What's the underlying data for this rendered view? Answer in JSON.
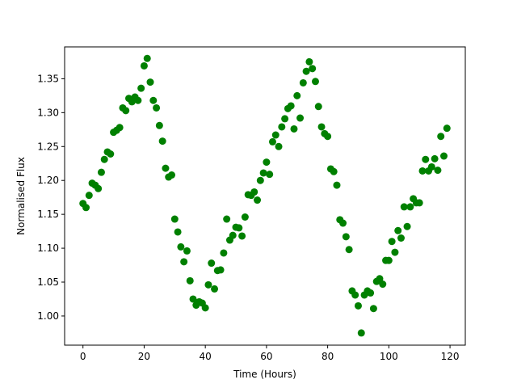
{
  "chart_data": {
    "type": "scatter",
    "title": "",
    "xlabel": "Time (Hours)",
    "ylabel": "Normalised Flux",
    "xlim": [
      -6,
      125
    ],
    "ylim": [
      0.957,
      1.397
    ],
    "xticks": [
      0,
      20,
      40,
      60,
      80,
      100,
      120
    ],
    "yticks": [
      1.0,
      1.05,
      1.1,
      1.15,
      1.2,
      1.25,
      1.3,
      1.35
    ],
    "xtick_labels": [
      "0",
      "20",
      "40",
      "60",
      "80",
      "100",
      "120"
    ],
    "ytick_labels": [
      "1.00",
      "1.05",
      "1.10",
      "1.15",
      "1.20",
      "1.25",
      "1.30",
      "1.35"
    ],
    "grid": false,
    "legend": false,
    "marker_color": "#008000",
    "series": [
      {
        "x": [
          0,
          1,
          2,
          3,
          4,
          5,
          6,
          7,
          8,
          9,
          10,
          11,
          12,
          13,
          14,
          15,
          16,
          17,
          18,
          19,
          20,
          21,
          22,
          23,
          24,
          25,
          26,
          27,
          28,
          29,
          30,
          31,
          32,
          33,
          34,
          35,
          36,
          37,
          38,
          39,
          40,
          41,
          42,
          43,
          44,
          45,
          46,
          47,
          48,
          49,
          50,
          51,
          52,
          53,
          54,
          55,
          56,
          57,
          58,
          59,
          60,
          61,
          62,
          63,
          64,
          65,
          66,
          67,
          68,
          69,
          70,
          71,
          72,
          73,
          74,
          75,
          76,
          77,
          78,
          79,
          80,
          81,
          82,
          83,
          84,
          85,
          86,
          87,
          88,
          89,
          90,
          91,
          92,
          93,
          94,
          95,
          96,
          97,
          98,
          99,
          100,
          101,
          102,
          103,
          104,
          105,
          106,
          107,
          108,
          109,
          110,
          111,
          112,
          113,
          114,
          115,
          116,
          117,
          118,
          119
        ],
        "y": [
          1.166,
          1.16,
          1.178,
          1.196,
          1.193,
          1.188,
          1.212,
          1.231,
          1.242,
          1.239,
          1.271,
          1.274,
          1.278,
          1.307,
          1.303,
          1.321,
          1.316,
          1.323,
          1.318,
          1.336,
          1.369,
          1.38,
          1.345,
          1.318,
          1.307,
          1.281,
          1.258,
          1.218,
          1.205,
          1.208,
          1.143,
          1.124,
          1.102,
          1.08,
          1.096,
          1.052,
          1.025,
          1.016,
          1.021,
          1.019,
          1.012,
          1.046,
          1.078,
          1.04,
          1.067,
          1.068,
          1.093,
          1.143,
          1.112,
          1.119,
          1.131,
          1.13,
          1.118,
          1.146,
          1.179,
          1.178,
          1.183,
          1.171,
          1.2,
          1.211,
          1.227,
          1.209,
          1.257,
          1.267,
          1.25,
          1.279,
          1.291,
          1.306,
          1.31,
          1.276,
          1.325,
          1.292,
          1.344,
          1.361,
          1.375,
          1.365,
          1.346,
          1.309,
          1.279,
          1.269,
          1.265,
          1.217,
          1.213,
          1.193,
          1.142,
          1.137,
          1.117,
          1.098,
          1.037,
          1.031,
          1.015,
          0.975,
          1.031,
          1.037,
          1.034,
          1.011,
          1.051,
          1.055,
          1.047,
          1.082,
          1.082,
          1.11,
          1.094,
          1.126,
          1.115,
          1.161,
          1.132,
          1.161,
          1.173,
          1.167,
          1.167,
          1.214,
          1.231,
          1.214,
          1.22,
          1.232,
          1.215,
          1.265,
          1.236,
          1.277
        ]
      }
    ]
  }
}
